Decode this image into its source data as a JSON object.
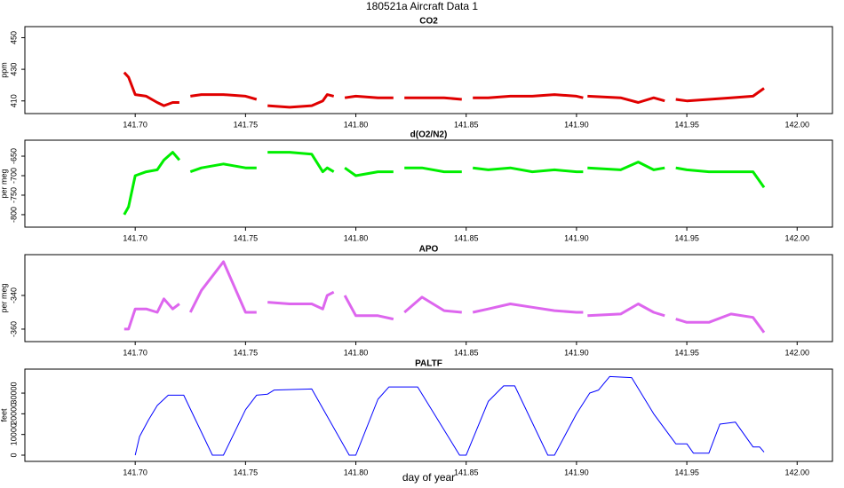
{
  "title": "180521a   Aircraft Data 1",
  "chart_data": [
    {
      "type": "line",
      "title": "CO2",
      "ylabel": "ppm",
      "x": [
        141.695,
        141.697,
        141.7,
        141.705,
        141.71,
        141.713,
        141.717,
        141.72,
        141.722,
        141.725,
        141.73,
        141.74,
        141.75,
        141.755,
        141.757,
        141.76,
        141.77,
        141.78,
        141.785,
        141.787,
        141.79,
        141.792,
        141.795,
        141.8,
        141.81,
        141.817,
        141.819,
        141.822,
        141.83,
        141.84,
        141.848,
        141.85,
        141.853,
        141.86,
        141.87,
        141.88,
        141.89,
        141.9,
        141.903,
        141.904,
        141.905,
        141.92,
        141.928,
        141.935,
        141.94,
        141.943,
        141.945,
        141.95,
        141.96,
        141.97,
        141.98,
        141.985
      ],
      "series": [
        {
          "color": "#e00000",
          "values": [
            428,
            425,
            414,
            413,
            409,
            407,
            409,
            409,
            null,
            413,
            414,
            414,
            413,
            411,
            null,
            407,
            406,
            407,
            410,
            414,
            413,
            null,
            412,
            413,
            412,
            412,
            null,
            412,
            412,
            412,
            411,
            null,
            412,
            412,
            413,
            413,
            414,
            413,
            412,
            null,
            413,
            412,
            409,
            412,
            410,
            null,
            411,
            410,
            411,
            412,
            413,
            418
          ]
        }
      ],
      "xlim": [
        141.65,
        142.016
      ],
      "ylim": [
        402,
        457
      ],
      "xticks": [
        {
          "value": 141.7,
          "label": "141.70"
        },
        141.75,
        {
          "value": 141.8,
          "label": "141.80"
        },
        141.85,
        {
          "value": 141.9,
          "label": "141.90"
        },
        141.95,
        {
          "value": 142.0,
          "label": "142.00"
        }
      ],
      "yticks": [
        410,
        430,
        450
      ]
    },
    {
      "type": "line",
      "title": "d(O2/N2)",
      "ylabel": "per meg",
      "x": [
        141.695,
        141.697,
        141.7,
        141.705,
        141.71,
        141.713,
        141.717,
        141.72,
        141.722,
        141.725,
        141.73,
        141.74,
        141.75,
        141.755,
        141.757,
        141.76,
        141.77,
        141.78,
        141.785,
        141.787,
        141.79,
        141.792,
        141.795,
        141.8,
        141.81,
        141.817,
        141.819,
        141.822,
        141.83,
        141.84,
        141.848,
        141.85,
        141.853,
        141.86,
        141.87,
        141.88,
        141.89,
        141.9,
        141.903,
        141.904,
        141.905,
        141.92,
        141.928,
        141.935,
        141.94,
        141.943,
        141.945,
        141.95,
        141.96,
        141.97,
        141.98,
        141.985
      ],
      "series": [
        {
          "color": "#00ee00",
          "values": [
            -800,
            -780,
            -700,
            -690,
            -685,
            -660,
            -640,
            -660,
            null,
            -690,
            -680,
            -670,
            -680,
            -680,
            null,
            -640,
            -640,
            -645,
            -690,
            -680,
            -690,
            null,
            -680,
            -700,
            -690,
            -690,
            null,
            -680,
            -680,
            -690,
            -690,
            null,
            -680,
            -685,
            -680,
            -690,
            -685,
            -690,
            -690,
            null,
            -680,
            -685,
            -665,
            -685,
            -680,
            null,
            -680,
            -685,
            -690,
            -690,
            -690,
            -730
          ]
        }
      ],
      "xlim": [
        141.65,
        142.016
      ],
      "ylim": [
        -832,
        -609
      ],
      "xticks": [
        {
          "value": 141.7,
          "label": "141.70"
        },
        141.75,
        {
          "value": 141.8,
          "label": "141.80"
        },
        141.85,
        {
          "value": 141.9,
          "label": "141.90"
        },
        141.95,
        {
          "value": 142.0,
          "label": "142.00"
        }
      ],
      "yticks": [
        -800,
        -750,
        -700,
        -650
      ]
    },
    {
      "type": "line",
      "title": "APO",
      "ylabel": "per meg",
      "x": [
        141.695,
        141.697,
        141.7,
        141.705,
        141.71,
        141.713,
        141.717,
        141.72,
        141.722,
        141.725,
        141.73,
        141.74,
        141.75,
        141.755,
        141.757,
        141.76,
        141.77,
        141.78,
        141.785,
        141.787,
        141.79,
        141.792,
        141.795,
        141.8,
        141.81,
        141.817,
        141.819,
        141.822,
        141.83,
        141.84,
        141.848,
        141.85,
        141.853,
        141.86,
        141.87,
        141.88,
        141.89,
        141.9,
        141.903,
        141.904,
        141.905,
        141.92,
        141.928,
        141.935,
        141.94,
        141.943,
        141.945,
        141.95,
        141.96,
        141.97,
        141.98,
        141.985
      ],
      "series": [
        {
          "color": "#dd66ee",
          "values": [
            -360,
            -360,
            -348,
            -348,
            -350,
            -342,
            -348,
            -345,
            null,
            -350,
            -337,
            -320,
            -350,
            -350,
            null,
            -344,
            -345,
            -345,
            -348,
            -340,
            -338,
            null,
            -340,
            -352,
            -352,
            -354,
            null,
            -350,
            -341,
            -349,
            -350,
            null,
            -350,
            -348,
            -345,
            -347,
            -349,
            -350,
            -350,
            null,
            -352,
            -351,
            -345,
            -350,
            -352,
            null,
            -354,
            -356,
            -356,
            -351,
            -353,
            -362
          ]
        }
      ],
      "xlim": [
        141.65,
        142.016
      ],
      "ylim": [
        -367.4,
        -315.8
      ],
      "xticks": [
        {
          "value": 141.7,
          "label": "141.70"
        },
        141.75,
        {
          "value": 141.8,
          "label": "141.80"
        },
        141.85,
        {
          "value": 141.9,
          "label": "141.90"
        },
        141.95,
        {
          "value": 142.0,
          "label": "142.00"
        }
      ],
      "yticks": [
        -360,
        -340
      ]
    },
    {
      "type": "line",
      "title": "PALTF",
      "ylabel": "feet",
      "xlabel": "day of year",
      "x": [
        141.7,
        141.702,
        141.706,
        141.71,
        141.715,
        141.722,
        141.735,
        141.74,
        141.75,
        141.755,
        141.76,
        141.763,
        141.78,
        141.797,
        141.8,
        141.81,
        141.815,
        141.828,
        141.847,
        141.85,
        141.86,
        141.867,
        141.872,
        141.887,
        141.89,
        141.9,
        141.906,
        141.91,
        141.915,
        141.925,
        141.935,
        141.945,
        141.95,
        141.953,
        141.96,
        141.965,
        141.972,
        141.98,
        141.983,
        141.985
      ],
      "series": [
        {
          "color": "#0000ff",
          "values": [
            0,
            9000,
            17000,
            24000,
            29000,
            29000,
            0,
            0,
            22000,
            29000,
            29500,
            31500,
            32000,
            0,
            0,
            27000,
            33000,
            33000,
            0,
            0,
            26000,
            33500,
            33500,
            0,
            0,
            20000,
            30000,
            31500,
            38000,
            37500,
            20000,
            5500,
            5500,
            1000,
            1000,
            15000,
            16000,
            4000,
            4000,
            1500
          ]
        }
      ],
      "xlim": [
        141.65,
        142.016
      ],
      "ylim": [
        -3000,
        41600
      ],
      "xticks": [
        {
          "value": 141.7,
          "label": "141.70"
        },
        141.75,
        {
          "value": 141.8,
          "label": "141.80"
        },
        141.85,
        {
          "value": 141.9,
          "label": "141.90"
        },
        141.95,
        {
          "value": 142.0,
          "label": "142.00"
        }
      ],
      "yticks": [
        0,
        10000,
        20000,
        30000
      ]
    }
  ]
}
